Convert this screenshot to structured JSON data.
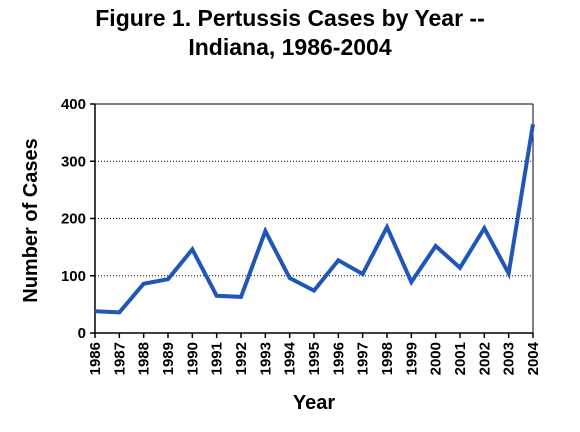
{
  "chart_data": {
    "type": "line",
    "title": [
      "Figure 1. Pertussis Cases by Year --",
      "Indiana, 1986-2004"
    ],
    "xlabel": "Year",
    "ylabel": "Number of Cases",
    "ylim": [
      0,
      400
    ],
    "yticks": [
      "0",
      "100",
      "200",
      "300",
      "400"
    ],
    "grid": "horizontal dotted",
    "categories": [
      "1986",
      "1987",
      "1988",
      "1989",
      "1990",
      "1991",
      "1992",
      "1993",
      "1994",
      "1995",
      "1996",
      "1997",
      "1998",
      "1999",
      "2000",
      "2001",
      "2002",
      "2003",
      "2004"
    ],
    "series": [
      {
        "values": [
          38,
          36,
          86,
          94,
          146,
          65,
          63,
          178,
          96,
          74,
          127,
          103,
          185,
          89,
          152,
          114,
          183,
          104,
          365
        ],
        "color": "#1f56b8"
      }
    ]
  }
}
